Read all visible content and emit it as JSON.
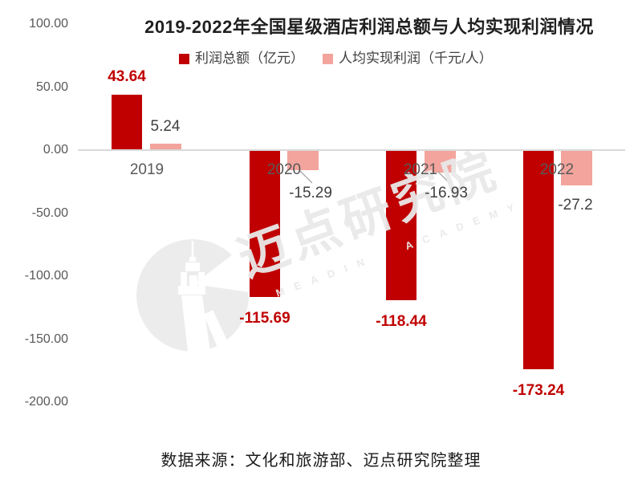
{
  "title": "2019-2022年全国星级酒店利润总额与人均实现利润情况",
  "legend": [
    {
      "label": "利润总额（亿元）",
      "color": "#c00000"
    },
    {
      "label": "人均实现利润（千元/人）",
      "color": "#f3a49d"
    }
  ],
  "source": "数据来源：文化和旅游部、迈点研究院整理",
  "watermark": {
    "cn": "迈点研究院",
    "en": "MEADIN  ACADEMY",
    "logo": "tower-lighthouse-icon"
  },
  "colors": {
    "profit_series": "#c00000",
    "percap_series": "#f3a49d",
    "negative_label_red": "#c00000",
    "dark_label": "#404040",
    "axis_text": "#595959",
    "axis_line": "#d9d9d9",
    "leader_line": "#a6a6a6",
    "watermark_gray": "#e9e9e9"
  },
  "chart_data": {
    "type": "bar",
    "categories": [
      "2019",
      "2020",
      "2021",
      "2022"
    ],
    "series": [
      {
        "name": "利润总额（亿元）",
        "color": "#c00000",
        "values": [
          43.64,
          -115.69,
          -118.44,
          -173.24
        ],
        "labels": [
          "43.64",
          "-115.69",
          "-118.44",
          "-173.24"
        ]
      },
      {
        "name": "人均实现利润（千元/人）",
        "color": "#f3a49d",
        "values": [
          5.24,
          -15.29,
          -16.93,
          -27.2
        ],
        "labels": [
          "5.24",
          "-15.29",
          "-16.93",
          "-27.2"
        ]
      }
    ],
    "y_axis": {
      "tick_values": [
        100,
        50,
        0,
        -50,
        -100,
        -150,
        -200
      ],
      "tick_labels": [
        "100.00",
        "50.00",
        "0.00",
        "-50.00",
        "-100.00",
        "-150.00",
        "-200.00"
      ],
      "ylim": [
        -200,
        100
      ]
    },
    "grid": false,
    "legend_position": "top",
    "data_labels": true
  }
}
